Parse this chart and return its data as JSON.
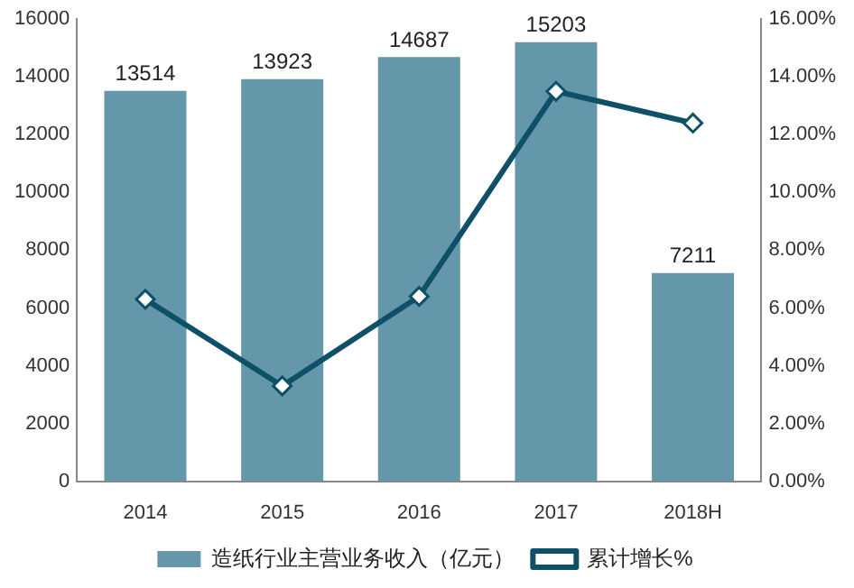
{
  "chart_data": {
    "type": "bar",
    "categories": [
      "2014",
      "2015",
      "2016",
      "2017",
      "2018H"
    ],
    "series": [
      {
        "name": "造纸行业主营业务收入（亿元）",
        "color": "#6497aa",
        "values": [
          13514,
          13923,
          14687,
          15203,
          7211
        ],
        "value_labels": [
          "13514",
          "13923",
          "14687",
          "15203",
          "7211"
        ]
      },
      {
        "name": "累计增长%",
        "type": "line",
        "axis": "y2",
        "color": "#0d5068",
        "marker": "diamond",
        "line_style": "solid",
        "values": [
          6.3,
          3.3,
          6.4,
          13.5,
          12.4
        ]
      }
    ],
    "ylim": [
      0,
      16000
    ],
    "yticks": [
      0,
      2000,
      4000,
      6000,
      8000,
      10000,
      12000,
      14000,
      16000
    ],
    "y2lim": [
      0,
      16
    ],
    "y2ticks": [
      {
        "value": 0,
        "label": "0.00%"
      },
      {
        "value": 2,
        "label": "2.00%"
      },
      {
        "value": 4,
        "label": "4.00%"
      },
      {
        "value": 6,
        "label": "6.00%"
      },
      {
        "value": 8,
        "label": "8.00%"
      },
      {
        "value": 10,
        "label": "10.00%"
      },
      {
        "value": 12,
        "label": "12.00%"
      },
      {
        "value": 14,
        "label": "14.00%"
      },
      {
        "value": 16,
        "label": "16.00%"
      }
    ],
    "grid": false,
    "legend": "bottom"
  }
}
